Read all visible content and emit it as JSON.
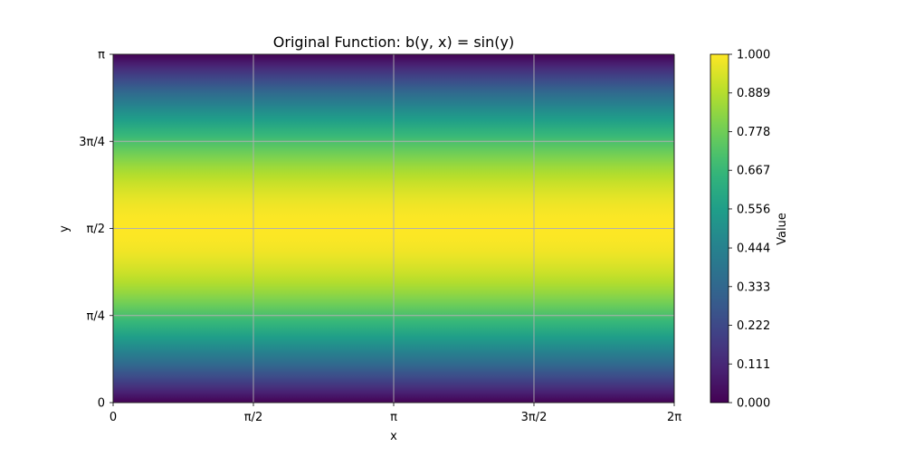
{
  "chart_data": {
    "type": "heatmap",
    "title": "Original Function: b(y, x) = sin(y)",
    "function": "sin(y)",
    "xlabel": "x",
    "ylabel": "y",
    "xlim": [
      0,
      6.283185307179586
    ],
    "ylim": [
      0,
      3.141592653589793
    ],
    "x_ticks": [
      {
        "value": 0,
        "label": "0"
      },
      {
        "value": 1.5707963267948966,
        "label": "π/2"
      },
      {
        "value": 3.141592653589793,
        "label": "π"
      },
      {
        "value": 4.71238898038469,
        "label": "3π/2"
      },
      {
        "value": 6.283185307179586,
        "label": "2π"
      }
    ],
    "y_ticks": [
      {
        "value": 0,
        "label": "0"
      },
      {
        "value": 0.7853981633974483,
        "label": "π/4"
      },
      {
        "value": 1.5707963267948966,
        "label": "π/2"
      },
      {
        "value": 2.356194490192345,
        "label": "3π/4"
      },
      {
        "value": 3.141592653589793,
        "label": "π"
      }
    ],
    "grid": true,
    "colormap": "viridis",
    "colorbar": {
      "label": "Value",
      "range": [
        0,
        1
      ],
      "ticks": [
        "0.000",
        "0.111",
        "0.222",
        "0.333",
        "0.444",
        "0.556",
        "0.667",
        "0.778",
        "0.889",
        "1.000"
      ]
    }
  },
  "colors": {
    "grid": "#b0b0b0",
    "viridis": [
      "#440154",
      "#482878",
      "#3e4989",
      "#31688e",
      "#26828e",
      "#1f9e89",
      "#35b779",
      "#6ece58",
      "#b5de2b",
      "#fde725"
    ]
  }
}
